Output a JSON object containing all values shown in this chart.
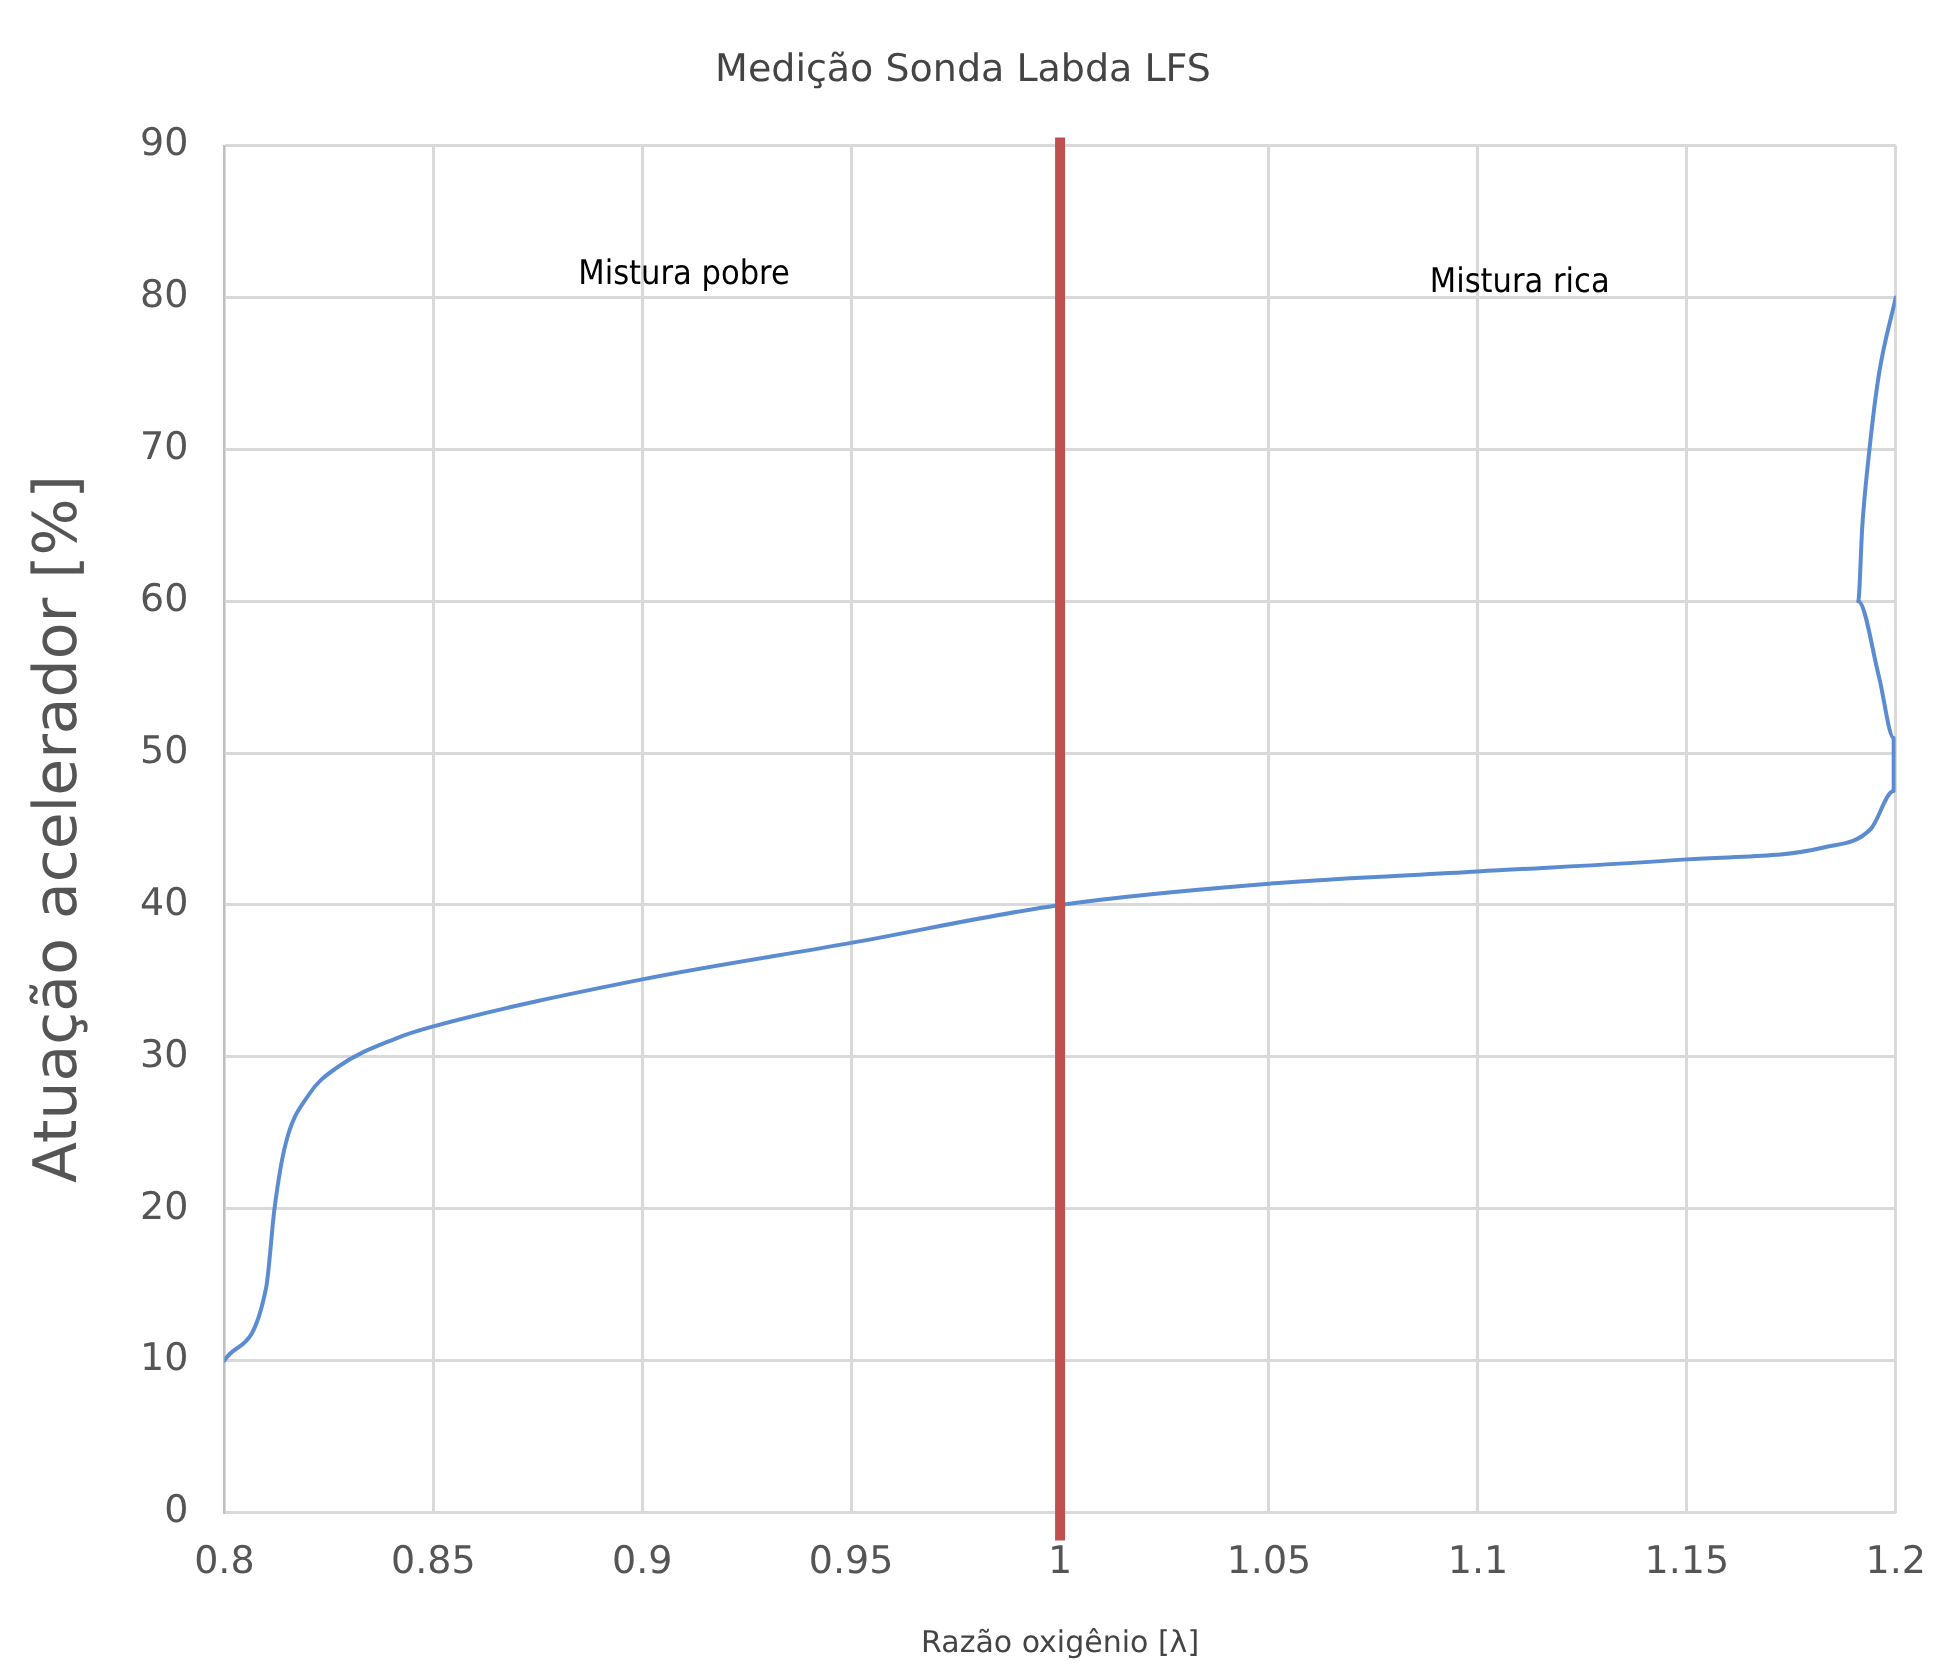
{
  "chart_data": {
    "type": "line",
    "title": "Medição Sonda Labda LFS",
    "xlabel": "Razão oxigênio [λ]",
    "ylabel": "Atuação acelerador [%]",
    "x": [
      0.8,
      0.81,
      0.812,
      0.8146,
      0.8202,
      0.827,
      0.841,
      0.85,
      0.9,
      0.95,
      1.0,
      1.05,
      1.1,
      1.15,
      1.183,
      1.194,
      1.1995,
      1.1995,
      1.196,
      1.191,
      1.192,
      1.1937,
      1.196,
      1.2
    ],
    "series": [
      {
        "color": "#5b8bd0",
        "values": [
          10,
          14.8,
          20,
          24.2,
          27.5,
          29.3,
          31.2,
          32,
          35.1,
          37.5,
          40,
          41.4,
          42.2,
          43,
          43.8,
          45,
          47.5,
          51,
          55,
          60,
          65,
          70,
          75,
          80
        ]
      }
    ],
    "xlim": [
      0.8,
      1.2
    ],
    "xticks": [
      0.8,
      0.85,
      0.9,
      0.95,
      1,
      1.05,
      1.1,
      1.15,
      1.2
    ],
    "ylim": [
      0,
      90
    ],
    "yticks": [
      0,
      10,
      20,
      30,
      40,
      50,
      60,
      70,
      80,
      90
    ],
    "grid": true,
    "legend": false,
    "marker": "none",
    "line_style": "solid",
    "ref_lines": [
      {
        "axis": "x",
        "value": 1,
        "color": "#c0504d"
      }
    ],
    "annotations": [
      "Mistura pobre",
      "Mistura rica"
    ]
  }
}
